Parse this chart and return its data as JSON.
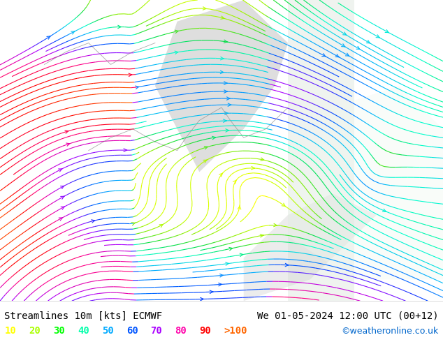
{
  "title_left": "Streamlines 10m [kts] ECMWF",
  "title_right": "We 01-05-2024 12:00 UTC (00+12)",
  "credit": "©weatheronline.co.uk",
  "legend_labels": [
    "10",
    "20",
    "30",
    "40",
    "50",
    "60",
    "70",
    "80",
    "90",
    ">100"
  ],
  "legend_colors": [
    "#ffff00",
    "#aaff00",
    "#00ff00",
    "#00ffaa",
    "#00aaff",
    "#0055ff",
    "#aa00ff",
    "#ff00aa",
    "#ff0000",
    "#ff6600"
  ],
  "bg_color": "#ffffff",
  "map_bg": "#c8f0a0",
  "fig_width": 6.34,
  "fig_height": 4.9,
  "dpi": 100,
  "title_fontsize": 10,
  "legend_fontsize": 10,
  "bottom_bar_color": "#ffffff",
  "streamline_colors": [
    "#ffff00",
    "#aaff00",
    "#00cc00",
    "#00ffaa",
    "#00aaff",
    "#0055ff",
    "#aa00ff",
    "#ff0055",
    "#ff0000"
  ],
  "land_color": "#c8f0a0",
  "sea_color": "#e8e8e8",
  "gray_color": "#b0b0b0"
}
